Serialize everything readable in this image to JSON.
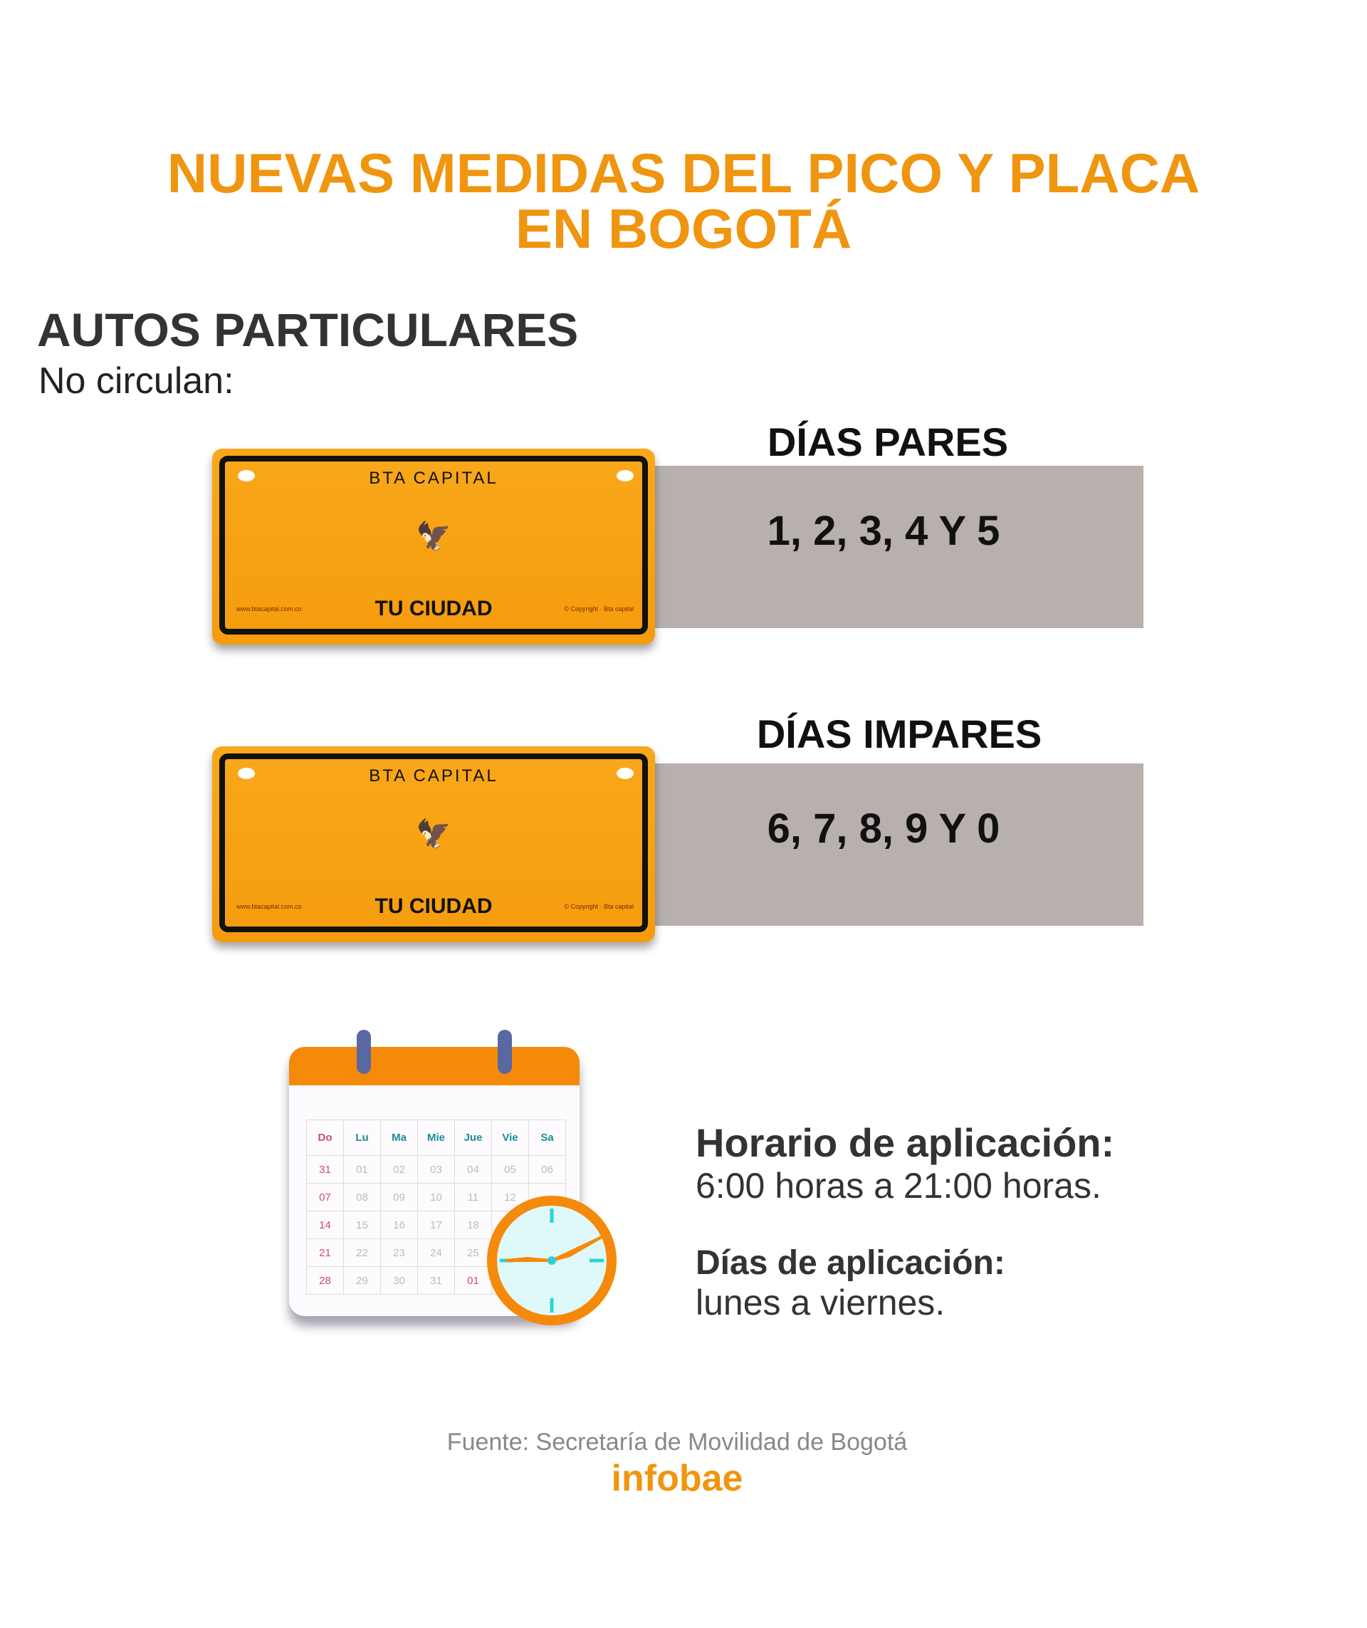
{
  "title": {
    "line1": "NUEVAS MEDIDAS DEL PICO Y PLACA",
    "line2": "EN BOGOTÁ"
  },
  "section": {
    "heading": "AUTOS PARTICULARES",
    "subheading": "No circulan:"
  },
  "plate": {
    "top": "BTA CAPITAL",
    "bottom": "TU CIUDAD",
    "website": "www.btacapital.com.co",
    "copyright": "© Copyright · Bta capital"
  },
  "rules": [
    {
      "label": "DÍAS PARES",
      "digits": "1, 2, 3, 4 Y 5"
    },
    {
      "label": "DÍAS IMPARES",
      "digits": "6, 7, 8, 9 Y 0"
    }
  ],
  "calendar": {
    "days": [
      "Do",
      "Lu",
      "Ma",
      "Mie",
      "Jue",
      "Vie",
      "Sa"
    ],
    "weeks": [
      [
        "31",
        "01",
        "02",
        "03",
        "04",
        "05",
        "06"
      ],
      [
        "07",
        "08",
        "09",
        "10",
        "11",
        "12",
        ""
      ],
      [
        "14",
        "15",
        "16",
        "17",
        "18",
        "",
        ""
      ],
      [
        "21",
        "22",
        "23",
        "24",
        "25",
        "",
        ""
      ],
      [
        "28",
        "29",
        "30",
        "31",
        "01",
        "",
        ""
      ]
    ]
  },
  "schedule": {
    "hours_label": "Horario de aplicación:",
    "hours_value": "6:00 horas a 21:00 horas.",
    "days_label": "Días de aplicación:",
    "days_value": "lunes a viernes."
  },
  "footer": {
    "source": "Fuente: Secretaría de Movilidad de Bogotá",
    "brand": "infobae"
  },
  "colors": {
    "accent": "#f0950f",
    "bar": "#b7b0ad"
  }
}
